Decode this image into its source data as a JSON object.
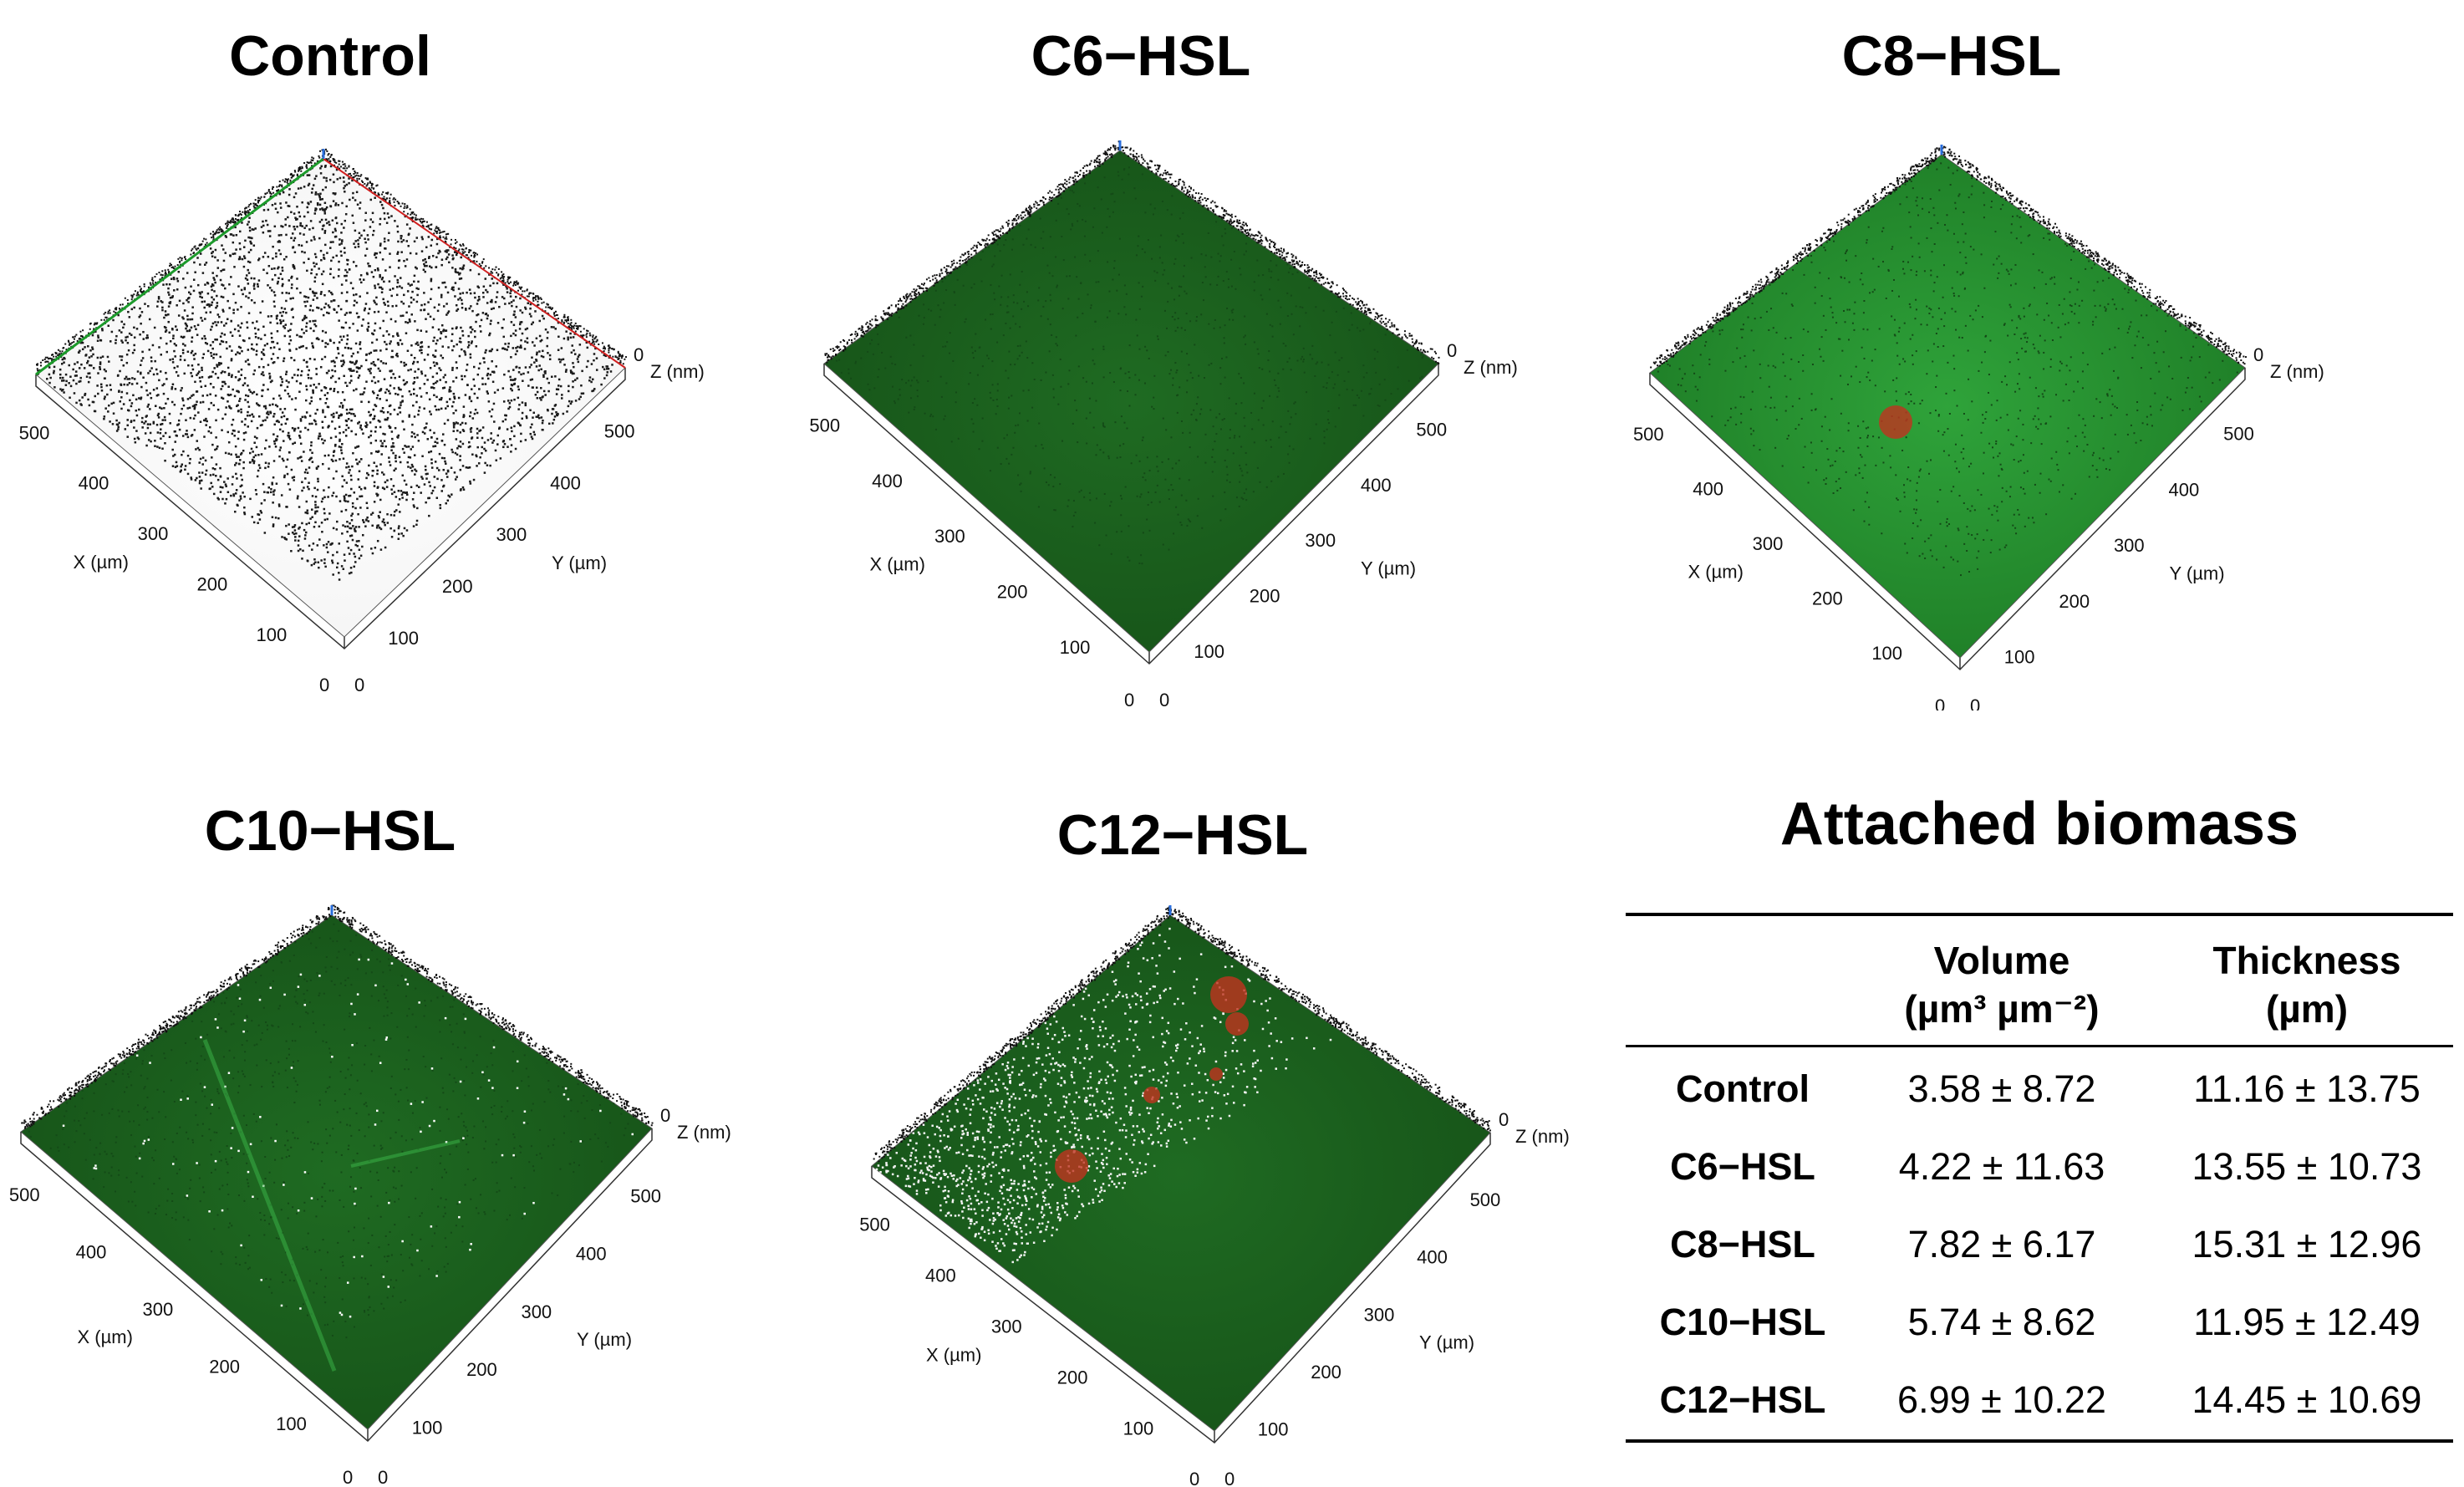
{
  "panels": [
    {
      "title": "Control",
      "style": "sparse",
      "blob": false
    },
    {
      "title": "C6−HSL",
      "style": "green",
      "blob": false
    },
    {
      "title": "C8−HSL",
      "style": "bright",
      "blob": true
    },
    {
      "title": "C10−HSL",
      "style": "green-line",
      "blob": false
    },
    {
      "title": "C12−HSL",
      "style": "mixed",
      "blob": true
    }
  ],
  "axes": {
    "x_label": "X (µm)",
    "y_label": "Y (µm)",
    "z_label": "Z (nm)",
    "ticks": [
      "500",
      "400",
      "300",
      "200",
      "100"
    ],
    "zero": "0"
  },
  "table": {
    "title": "Attached biomass",
    "col_volume_line1": "Volume",
    "col_volume_line2": "(µm³ µm⁻²)",
    "col_thickness_line1": "Thickness",
    "col_thickness_line2": "(µm)",
    "rows": [
      {
        "label": "Control",
        "volume": "3.58 ± 8.72",
        "thickness": "11.16 ± 13.75"
      },
      {
        "label": "C6−HSL",
        "volume": "4.22 ± 11.63",
        "thickness": "13.55 ± 10.73"
      },
      {
        "label": "C8−HSL",
        "volume": "7.82 ± 6.17",
        "thickness": "15.31 ± 12.96"
      },
      {
        "label": "C10−HSL",
        "volume": "5.74 ± 8.62",
        "thickness": "11.95 ± 12.49"
      },
      {
        "label": "C12−HSL",
        "volume": "6.99 ± 10.22",
        "thickness": "14.45 ± 10.69"
      }
    ]
  },
  "colors": {
    "green_dark": "#1f6b22",
    "green_bright": "#2fa33a",
    "red": "#c0331f"
  }
}
